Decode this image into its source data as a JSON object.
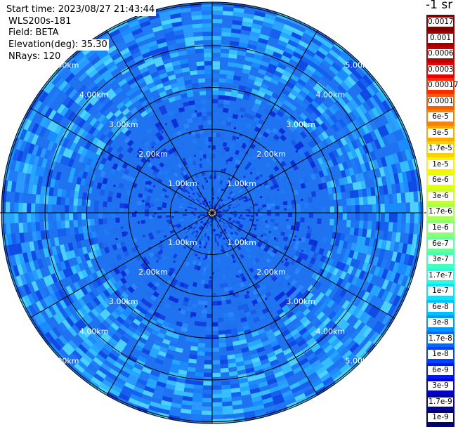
{
  "header": {
    "start_time": "Start time: 2023/08/27 21:43:44",
    "instrument": "WLS200s-181",
    "field": "Field: BETA",
    "elevation": "Elevation(deg): 35.30",
    "nrays": "NRays: 120"
  },
  "units_label": "-1 sr",
  "range_rings": [
    "1.00km",
    "2.00km",
    "3.00km",
    "4.00km",
    "5.00km"
  ],
  "colorbar": {
    "ticks": [
      "0.0017",
      "0.001",
      "0.0006",
      "0.0003",
      "0.00017",
      "0.0001",
      "6e-5",
      "3e-5",
      "1.7e-5",
      "1e-5",
      "6e-6",
      "3e-6",
      "1.7e-6",
      "1e-6",
      "6e-7",
      "3e-7",
      "1.7e-7",
      "1e-7",
      "6e-8",
      "3e-8",
      "1.7e-8",
      "1e-8",
      "6e-9",
      "3e-9",
      "1.7e-9",
      "1e-9"
    ],
    "colors": [
      "#7f0000",
      "#9c0000",
      "#c00000",
      "#e60000",
      "#ff2a00",
      "#ff5a00",
      "#ff8000",
      "#ffa800",
      "#ffd000",
      "#fff200",
      "#e2ff10",
      "#c4ff33",
      "#a6ff55",
      "#88ff77",
      "#66ff99",
      "#44ffbb",
      "#22ffdd",
      "#00e8ff",
      "#00c0ff",
      "#0096ff",
      "#006cff",
      "#0040ff",
      "#0018f0",
      "#0000c8",
      "#00009c",
      "#000070"
    ]
  }
}
